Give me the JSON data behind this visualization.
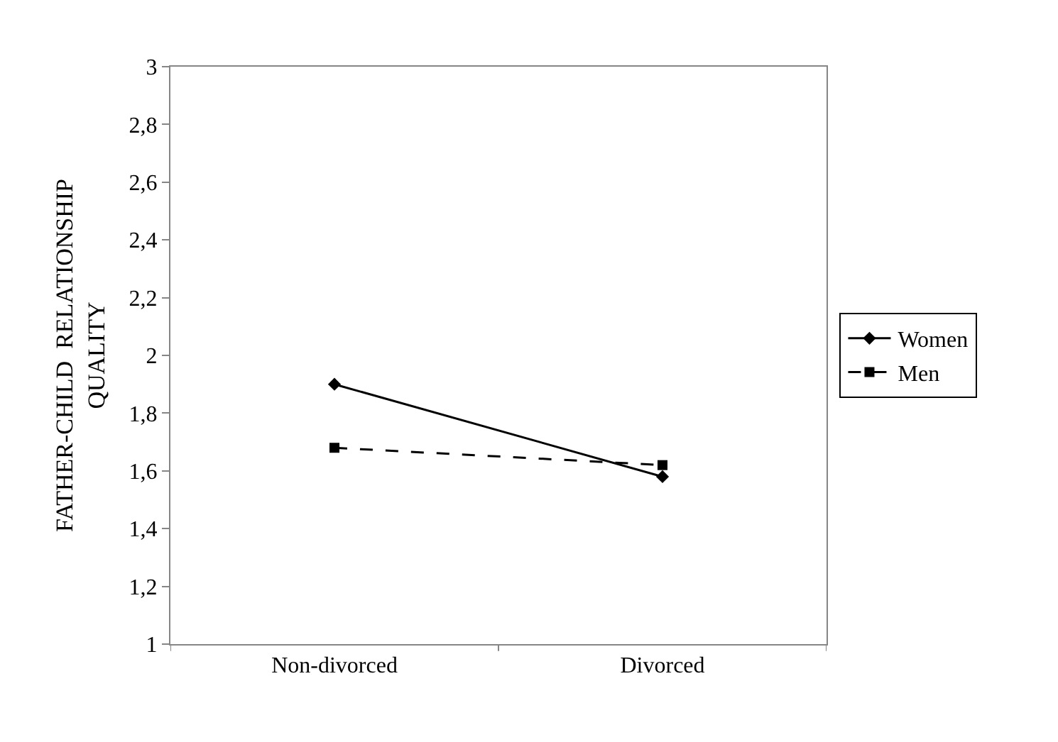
{
  "chart_data": {
    "type": "line",
    "ylabel": "FATHER-CHILD  RELATIONSHIP\nQUALITY",
    "categories": [
      "Non-divorced",
      "Divorced"
    ],
    "series": [
      {
        "name": "Women",
        "color": "#000000",
        "values": [
          1.9,
          1.58
        ],
        "marker": "diamond",
        "line_style": "solid"
      },
      {
        "name": "Men",
        "color": "#000000",
        "values": [
          1.68,
          1.62
        ],
        "marker": "square",
        "line_style": "dashed"
      }
    ],
    "ylim": [
      1,
      3
    ],
    "yticks": [
      1,
      {
        "value": 1.2,
        "label": "1,2"
      },
      {
        "value": 1.4,
        "label": "1,4"
      },
      {
        "value": 1.6,
        "label": "1,6"
      },
      {
        "value": 1.8,
        "label": "1,8"
      },
      2,
      {
        "value": 2.2,
        "label": "2,2"
      },
      {
        "value": 2.4,
        "label": "2,4"
      },
      {
        "value": 2.6,
        "label": "2,6"
      },
      {
        "value": 2.8,
        "label": "2,8"
      },
      3
    ],
    "legend": "right"
  }
}
